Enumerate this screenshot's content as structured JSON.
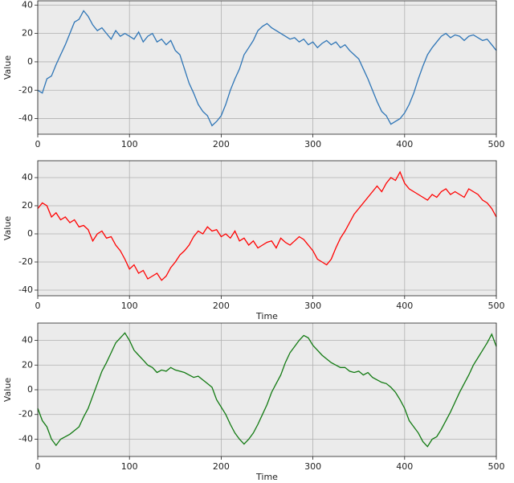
{
  "chart_data": [
    {
      "type": "line",
      "ylabel": "Value",
      "color": "#2e75b6",
      "x": [
        0,
        5,
        10,
        15,
        20,
        25,
        30,
        35,
        40,
        45,
        50,
        55,
        60,
        65,
        70,
        75,
        80,
        85,
        90,
        95,
        100,
        105,
        110,
        115,
        120,
        125,
        130,
        135,
        140,
        145,
        150,
        155,
        160,
        165,
        170,
        175,
        180,
        185,
        190,
        195,
        200,
        205,
        210,
        215,
        220,
        225,
        230,
        235,
        240,
        245,
        250,
        255,
        260,
        265,
        270,
        275,
        280,
        285,
        290,
        295,
        300,
        305,
        310,
        315,
        320,
        325,
        330,
        335,
        340,
        345,
        350,
        355,
        360,
        365,
        370,
        375,
        380,
        385,
        390,
        395,
        400,
        405,
        410,
        415,
        420,
        425,
        430,
        435,
        440,
        445,
        450,
        455,
        460,
        465,
        470,
        475,
        480,
        485,
        490,
        495,
        500
      ],
      "values": [
        -20,
        -22,
        -12,
        -10,
        -2,
        5,
        12,
        20,
        28,
        30,
        36,
        32,
        26,
        22,
        24,
        20,
        16,
        22,
        18,
        20,
        18,
        16,
        21,
        14,
        18,
        20,
        14,
        16,
        12,
        15,
        8,
        5,
        -5,
        -15,
        -22,
        -30,
        -35,
        -38,
        -45,
        -42,
        -38,
        -30,
        -20,
        -12,
        -5,
        5,
        10,
        15,
        22,
        25,
        27,
        24,
        22,
        20,
        18,
        16,
        17,
        14,
        16,
        12,
        14,
        10,
        13,
        15,
        12,
        14,
        10,
        12,
        8,
        5,
        2,
        -5,
        -12,
        -20,
        -28,
        -35,
        -38,
        -44,
        -42,
        -40,
        -36,
        -30,
        -22,
        -12,
        -3,
        5,
        10,
        14,
        18,
        20,
        17,
        19,
        18,
        15,
        18,
        19,
        17,
        15,
        16,
        12,
        8
      ],
      "xlim": [
        0,
        500
      ],
      "xticks": [
        0,
        100,
        200,
        300,
        400,
        500
      ],
      "ylim": [
        -51,
        43
      ],
      "yticks": [
        -40,
        -20,
        0,
        20,
        40
      ],
      "grid": true
    },
    {
      "type": "line",
      "ylabel": "Value",
      "xlabel": "Time",
      "color": "#ff0000",
      "x": [
        0,
        5,
        10,
        15,
        20,
        25,
        30,
        35,
        40,
        45,
        50,
        55,
        60,
        65,
        70,
        75,
        80,
        85,
        90,
        95,
        100,
        105,
        110,
        115,
        120,
        125,
        130,
        135,
        140,
        145,
        150,
        155,
        160,
        165,
        170,
        175,
        180,
        185,
        190,
        195,
        200,
        205,
        210,
        215,
        220,
        225,
        230,
        235,
        240,
        245,
        250,
        255,
        260,
        265,
        270,
        275,
        280,
        285,
        290,
        295,
        300,
        305,
        310,
        315,
        320,
        325,
        330,
        335,
        340,
        345,
        350,
        355,
        360,
        365,
        370,
        375,
        380,
        385,
        390,
        395,
        400,
        405,
        410,
        415,
        420,
        425,
        430,
        435,
        440,
        445,
        450,
        455,
        460,
        465,
        470,
        475,
        480,
        485,
        490,
        495,
        500
      ],
      "values": [
        18,
        22,
        20,
        12,
        15,
        10,
        12,
        8,
        10,
        5,
        6,
        3,
        -5,
        0,
        2,
        -3,
        -2,
        -8,
        -12,
        -18,
        -25,
        -22,
        -28,
        -26,
        -32,
        -30,
        -28,
        -33,
        -30,
        -24,
        -20,
        -15,
        -12,
        -8,
        -2,
        2,
        0,
        5,
        2,
        3,
        -2,
        0,
        -3,
        2,
        -5,
        -3,
        -8,
        -5,
        -10,
        -8,
        -6,
        -5,
        -10,
        -3,
        -6,
        -8,
        -5,
        -2,
        -4,
        -8,
        -12,
        -18,
        -20,
        -22,
        -18,
        -10,
        -3,
        2,
        8,
        14,
        18,
        22,
        26,
        30,
        34,
        30,
        36,
        40,
        38,
        44,
        36,
        32,
        30,
        28,
        26,
        24,
        28,
        26,
        30,
        32,
        28,
        30,
        28,
        26,
        32,
        30,
        28,
        24,
        22,
        18,
        12
      ],
      "xlim": [
        0,
        500
      ],
      "xticks": [
        0,
        100,
        200,
        300,
        400,
        500
      ],
      "ylim": [
        -44,
        52
      ],
      "yticks": [
        -40,
        -20,
        0,
        20,
        40
      ],
      "grid": true
    },
    {
      "type": "line",
      "ylabel": "Value",
      "xlabel": "Time",
      "color": "#127a12",
      "x": [
        0,
        5,
        10,
        15,
        20,
        25,
        30,
        35,
        40,
        45,
        50,
        55,
        60,
        65,
        70,
        75,
        80,
        85,
        90,
        95,
        100,
        105,
        110,
        115,
        120,
        125,
        130,
        135,
        140,
        145,
        150,
        155,
        160,
        165,
        170,
        175,
        180,
        185,
        190,
        195,
        200,
        205,
        210,
        215,
        220,
        225,
        230,
        235,
        240,
        245,
        250,
        255,
        260,
        265,
        270,
        275,
        280,
        285,
        290,
        295,
        300,
        305,
        310,
        315,
        320,
        325,
        330,
        335,
        340,
        345,
        350,
        355,
        360,
        365,
        370,
        375,
        380,
        385,
        390,
        395,
        400,
        405,
        410,
        415,
        420,
        425,
        430,
        435,
        440,
        445,
        450,
        455,
        460,
        465,
        470,
        475,
        480,
        485,
        490,
        495,
        500
      ],
      "values": [
        -15,
        -25,
        -30,
        -40,
        -45,
        -40,
        -38,
        -36,
        -33,
        -30,
        -22,
        -15,
        -5,
        5,
        15,
        22,
        30,
        38,
        42,
        46,
        40,
        32,
        28,
        24,
        20,
        18,
        14,
        16,
        15,
        18,
        16,
        15,
        14,
        12,
        10,
        11,
        8,
        5,
        2,
        -8,
        -14,
        -20,
        -28,
        -35,
        -40,
        -44,
        -40,
        -35,
        -28,
        -20,
        -12,
        -2,
        5,
        12,
        22,
        30,
        35,
        40,
        44,
        42,
        36,
        32,
        28,
        25,
        22,
        20,
        18,
        18,
        15,
        14,
        15,
        12,
        14,
        10,
        8,
        6,
        5,
        2,
        -2,
        -8,
        -15,
        -25,
        -30,
        -35,
        -42,
        -46,
        -40,
        -38,
        -32,
        -25,
        -18,
        -10,
        -2,
        5,
        12,
        20,
        26,
        32,
        38,
        45,
        35
      ],
      "xlim": [
        0,
        500
      ],
      "xticks": [
        0,
        100,
        200,
        300,
        400,
        500
      ],
      "ylim": [
        -54,
        54
      ],
      "yticks": [
        -40,
        -20,
        0,
        20,
        40
      ],
      "grid": true
    }
  ]
}
